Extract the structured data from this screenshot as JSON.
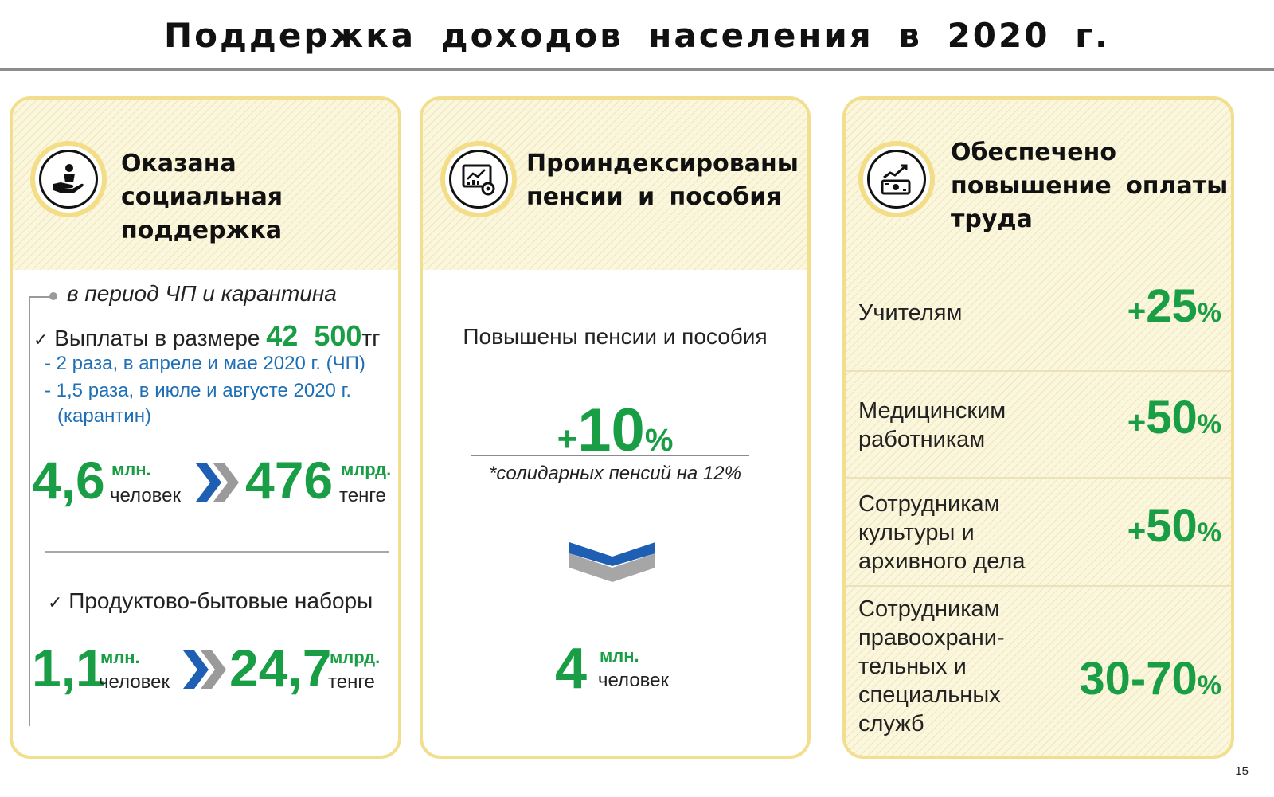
{
  "title": "Поддержка доходов населения в 2020 г.",
  "page_number": "15",
  "left_card": {
    "icon": "hand-person-icon",
    "title_line1": "Оказана социальная",
    "title_line2": "поддержка",
    "period_label": "в период ЧП и карантина",
    "payments_prefix": "Выплаты в размере",
    "payments_amount": "42 500",
    "payments_currency": "тг",
    "note1": "- 2 раза, в апреле и мае 2020 г. (ЧП)",
    "note2": "- 1,5 раза, в июле и августе 2020 г.",
    "note3": "(карантин)",
    "stat1_people": "4,6",
    "stat1_people_unit": "млн.",
    "stat1_people_unit2": "человек",
    "stat1_money": "476",
    "stat1_money_unit": "млрд.",
    "stat1_money_unit2": "тенге",
    "sets_label": "Продуктово-бытовые наборы",
    "stat2_people": "1,1",
    "stat2_people_unit": "млн.",
    "stat2_people_unit2": "человек",
    "stat2_money": "24,7",
    "stat2_money_unit": "млрд.",
    "stat2_money_unit2": "тенге"
  },
  "mid_card": {
    "icon": "analytics-chart-icon",
    "title_line1": "Проиндексированы",
    "title_line2": "пенсии и пособия",
    "subtitle": "Повышены пенсии и пособия",
    "plus": "+",
    "pct_value": "10",
    "pct_sign": "%",
    "footnote": "*солидарных пенсий на 12%",
    "people_value": "4",
    "people_unit": "млн.",
    "people_unit2": "человек"
  },
  "right_card": {
    "icon": "money-growth-icon",
    "title_line1": "Обеспечено",
    "title_line2": "повышение оплаты",
    "title_line3": "труда",
    "rows": [
      {
        "label": "Учителям",
        "plus": "+",
        "value": "25",
        "pct": "%"
      },
      {
        "label": "Медицинским работникам",
        "plus": "+",
        "value": "50",
        "pct": "%"
      },
      {
        "label": "Сотрудникам культуры и архивного дела",
        "plus": "+",
        "value": "50",
        "pct": "%"
      },
      {
        "label": "Сотрудникам правоохрани-тельных и специальных служб",
        "plus": "",
        "value": "30-70",
        "pct": "%"
      }
    ]
  },
  "colors": {
    "green": "#1a9e45",
    "blue": "#1e6fb5",
    "gold": "#f1df8f",
    "arrow_blue": "#1e5fb4",
    "arrow_gray": "#9a9a9a"
  }
}
